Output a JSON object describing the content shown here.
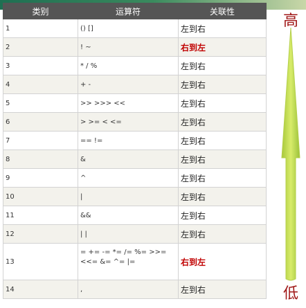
{
  "table": {
    "headers": {
      "category": "类别",
      "operator": "运算符",
      "associativity": "关联性"
    },
    "rows": [
      {
        "category": "1",
        "operator": "() []",
        "associativity": "左到右"
      },
      {
        "category": "2",
        "operator": "! ~",
        "associativity": "右到左"
      },
      {
        "category": "3",
        "operator": "* / %",
        "associativity": "左到右"
      },
      {
        "category": "4",
        "operator": "+ -",
        "associativity": "左到右"
      },
      {
        "category": "5",
        "operator": ">> >>> <<",
        "associativity": "左到右"
      },
      {
        "category": "6",
        "operator": "> >= < <=",
        "associativity": "左到右"
      },
      {
        "category": "7",
        "operator": "== !=",
        "associativity": "左到右"
      },
      {
        "category": "8",
        "operator": "&",
        "associativity": "左到右"
      },
      {
        "category": "9",
        "operator": "^",
        "associativity": "左到右"
      },
      {
        "category": "10",
        "operator": "|",
        "associativity": "左到右"
      },
      {
        "category": "11",
        "operator": "&&",
        "associativity": "左到右"
      },
      {
        "category": "12",
        "operator": "| |",
        "associativity": "左到右"
      },
      {
        "category": "13",
        "operator": "= += -= *= /= %= >>= <<= &= ^= |=",
        "associativity": "右到左"
      },
      {
        "category": "14",
        "operator": ",",
        "associativity": "左到右"
      }
    ]
  },
  "priority": {
    "high_label": "高",
    "low_label": "低"
  },
  "colors": {
    "header_bg": "#555555",
    "highlight_text": "#c00000",
    "arrow_green": "#c4dc4c"
  }
}
